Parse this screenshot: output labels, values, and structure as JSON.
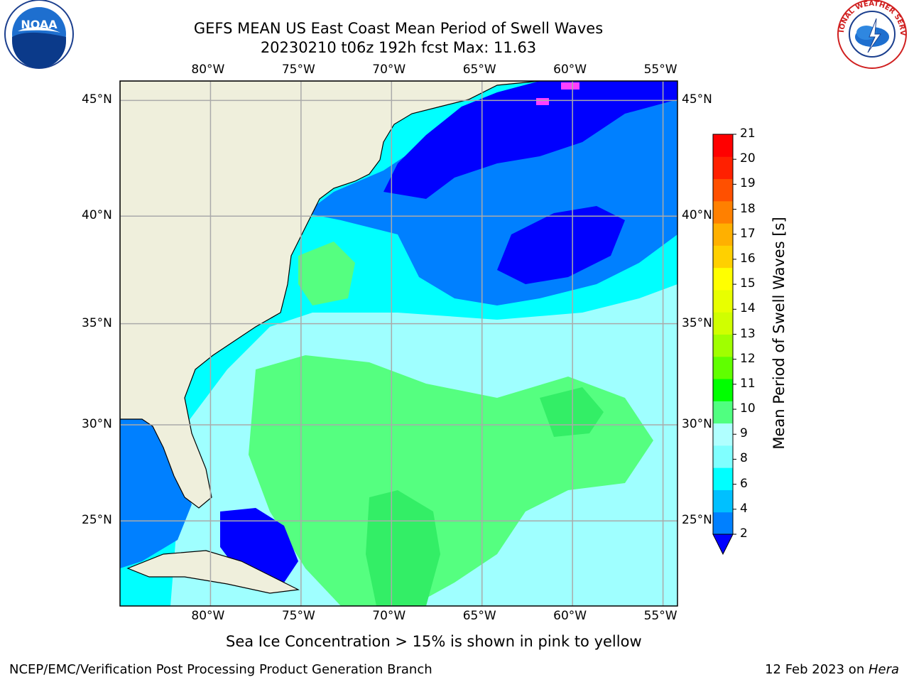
{
  "title": {
    "line1": "GEFS MEAN US East Coast Mean Period of Swell Waves",
    "line2": "20230210 t06z 192h fcst   Max: 11.63"
  },
  "map": {
    "extent": {
      "lon_min": -85,
      "lon_max": -54.2,
      "lat_min": 20.4,
      "lat_max": 45.8
    },
    "lon_ticks": [
      {
        "value": -80,
        "label": "80°W"
      },
      {
        "value": -75,
        "label": "75°W"
      },
      {
        "value": -70,
        "label": "70°W"
      },
      {
        "value": -65,
        "label": "65°W"
      },
      {
        "value": -60,
        "label": "60°W"
      },
      {
        "value": -55,
        "label": "55°W"
      }
    ],
    "lat_ticks": [
      {
        "value": 45,
        "label": "45°N"
      },
      {
        "value": 40,
        "label": "40°N"
      },
      {
        "value": 35,
        "label": "35°N"
      },
      {
        "value": 30,
        "label": "30°N"
      },
      {
        "value": 25,
        "label": "25°N"
      }
    ],
    "gridlines": true,
    "land_color": "#efefdc",
    "ocean_field": {
      "description": "",
      "base_color": "#00ffff"
    }
  },
  "colorbar": {
    "label": "Mean Period of Swell Waves [s]",
    "ticks": [
      "2",
      "4",
      "6",
      "8",
      "9",
      "10",
      "11",
      "12",
      "13",
      "14",
      "15",
      "16",
      "17",
      "18",
      "19",
      "20",
      "21"
    ],
    "colors": [
      "#0080ff",
      "#00c0ff",
      "#00ffff",
      "#80ffff",
      "#b0ffff",
      "#50ff80",
      "#00ff00",
      "#60ff00",
      "#a0ff00",
      "#d0ff00",
      "#e8ff00",
      "#ffff00",
      "#ffd000",
      "#ffb000",
      "#ff8000",
      "#ff5000",
      "#ff2000",
      "#ff0000"
    ],
    "under_color": "#0000ff",
    "extend": "min"
  },
  "annotation": "Sea Ice Concentration > 15% is shown in pink to yellow",
  "footer": {
    "left": "NCEP/EMC/Verification Post Processing Product Generation Branch",
    "right_date": "12 Feb 2023 on ",
    "right_host": "Hera"
  },
  "logos": {
    "left": "NOAA",
    "right": "NATIONAL WEATHER SERVICE"
  }
}
